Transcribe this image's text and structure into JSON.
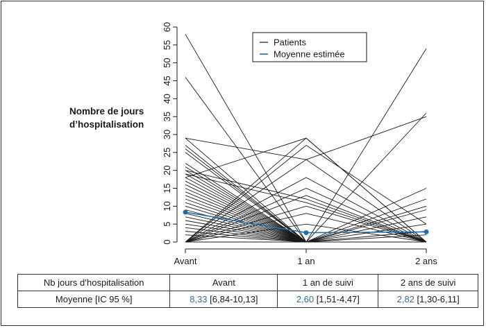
{
  "y_axis_label_lines": [
    "Nombre de jours",
    "d’hospitalisation"
  ],
  "colors": {
    "patients": "#1a1a1a",
    "mean": "#1f6fae",
    "axis": "#1a1a1a"
  },
  "chart_data": {
    "type": "line",
    "categories": [
      "Avant",
      "1 an",
      "2 ans"
    ],
    "xlabel": "",
    "ylabel": "Nombre de jours d’hospitalisation",
    "ylim": [
      0,
      60
    ],
    "yticks": [
      0,
      5,
      10,
      15,
      20,
      25,
      30,
      35,
      40,
      45,
      50,
      55,
      60
    ],
    "legend": {
      "position": "top-right",
      "entries": [
        "Patients",
        "Moyenne estimée"
      ]
    },
    "grid": false,
    "series": [
      {
        "name": "Moyenne estimée",
        "values": [
          8.33,
          2.6,
          2.82
        ]
      }
    ],
    "patients": [
      [
        58,
        0,
        0
      ],
      [
        46,
        0,
        0
      ],
      [
        29,
        0,
        0
      ],
      [
        27,
        0,
        0
      ],
      [
        26,
        0,
        0
      ],
      [
        25,
        0,
        0
      ],
      [
        22,
        0,
        0
      ],
      [
        21,
        0,
        0
      ],
      [
        20,
        0,
        0
      ],
      [
        19,
        0,
        0
      ],
      [
        18,
        0,
        0
      ],
      [
        17,
        0,
        0
      ],
      [
        16,
        0,
        0
      ],
      [
        15,
        0,
        0
      ],
      [
        14,
        0,
        0
      ],
      [
        13,
        0,
        0
      ],
      [
        12,
        0,
        0
      ],
      [
        11,
        0,
        0
      ],
      [
        10,
        0,
        0
      ],
      [
        9,
        0,
        0
      ],
      [
        8,
        0,
        0
      ],
      [
        7,
        0,
        0
      ],
      [
        6,
        0,
        0
      ],
      [
        5,
        0,
        0
      ],
      [
        4,
        0,
        0
      ],
      [
        3,
        0,
        0
      ],
      [
        2,
        0,
        0
      ],
      [
        29,
        23,
        0
      ],
      [
        18,
        29,
        0
      ],
      [
        19,
        11,
        0
      ],
      [
        20,
        12,
        0
      ],
      [
        0,
        29,
        0
      ],
      [
        0,
        27,
        5
      ],
      [
        0,
        23,
        35
      ],
      [
        0,
        18,
        0
      ],
      [
        0,
        15,
        0
      ],
      [
        0,
        13,
        0
      ],
      [
        0,
        10,
        0
      ],
      [
        0,
        8,
        0
      ],
      [
        0,
        5,
        0
      ],
      [
        0,
        0,
        54
      ],
      [
        0,
        0,
        36
      ],
      [
        0,
        0,
        15
      ],
      [
        0,
        0,
        12
      ],
      [
        0,
        0,
        10
      ],
      [
        0,
        0,
        9
      ],
      [
        0,
        0,
        7
      ],
      [
        0,
        0,
        5
      ],
      [
        0,
        0,
        3
      ],
      [
        0,
        0,
        2
      ]
    ]
  },
  "legend_labels": {
    "patients": "Patients",
    "mean": "Moyenne estimée"
  },
  "table": {
    "headers": [
      "Nb jours d’hospitalisation",
      "Avant",
      "1 an de suivi",
      "2 ans de suivi"
    ],
    "row_label": "Moyenne [IC 95 %]",
    "cells": [
      {
        "value": "8,33",
        "ci": " [6,84-10,13]"
      },
      {
        "value": "2,60",
        "ci": " [1,51-4,47]"
      },
      {
        "value": "2,82",
        "ci": " [1,30-6,11]"
      }
    ]
  }
}
